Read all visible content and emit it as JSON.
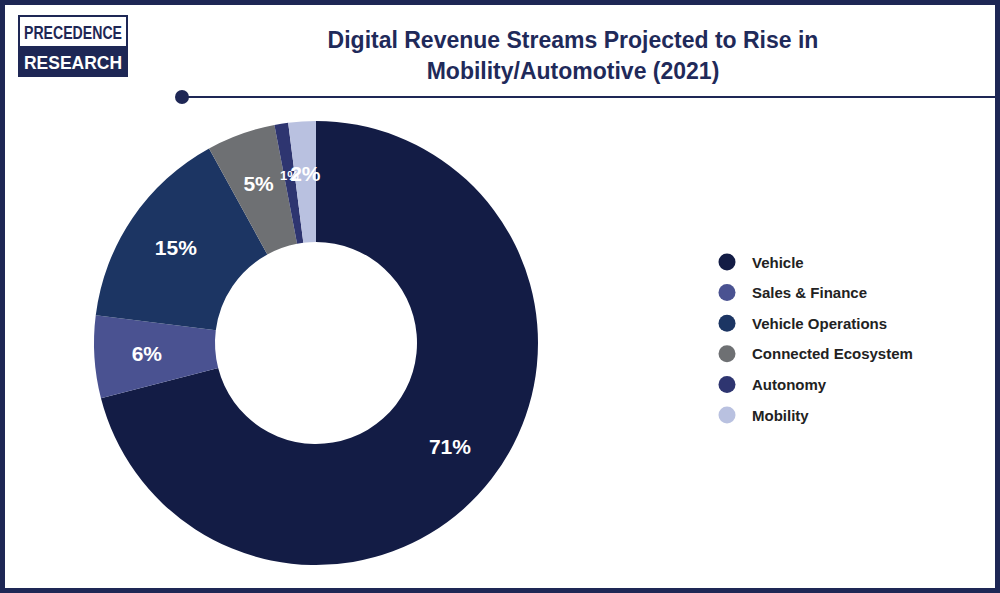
{
  "chart_data": {
    "type": "donut",
    "title": "Digital Revenue Streams Projected to Rise in Mobility/Automotive (2021)",
    "annotations": [
      "PRECEDENCE",
      "RESEARCH"
    ],
    "categories": [
      "Vehicle",
      "Sales & Finance",
      "Vehicle Operations",
      "Connected Ecosystem",
      "Autonomy",
      "Mobility"
    ],
    "values": [
      71,
      6,
      15,
      5,
      1,
      2
    ],
    "value_labels": [
      "71%",
      "6%",
      "15%",
      "5%",
      "1%",
      "2%"
    ],
    "colors": [
      "#131c45",
      "#4a5291",
      "#1c3563",
      "#6e7073",
      "#2e3570",
      "#b9c1e0"
    ],
    "data_labels": true,
    "legend": "right"
  }
}
